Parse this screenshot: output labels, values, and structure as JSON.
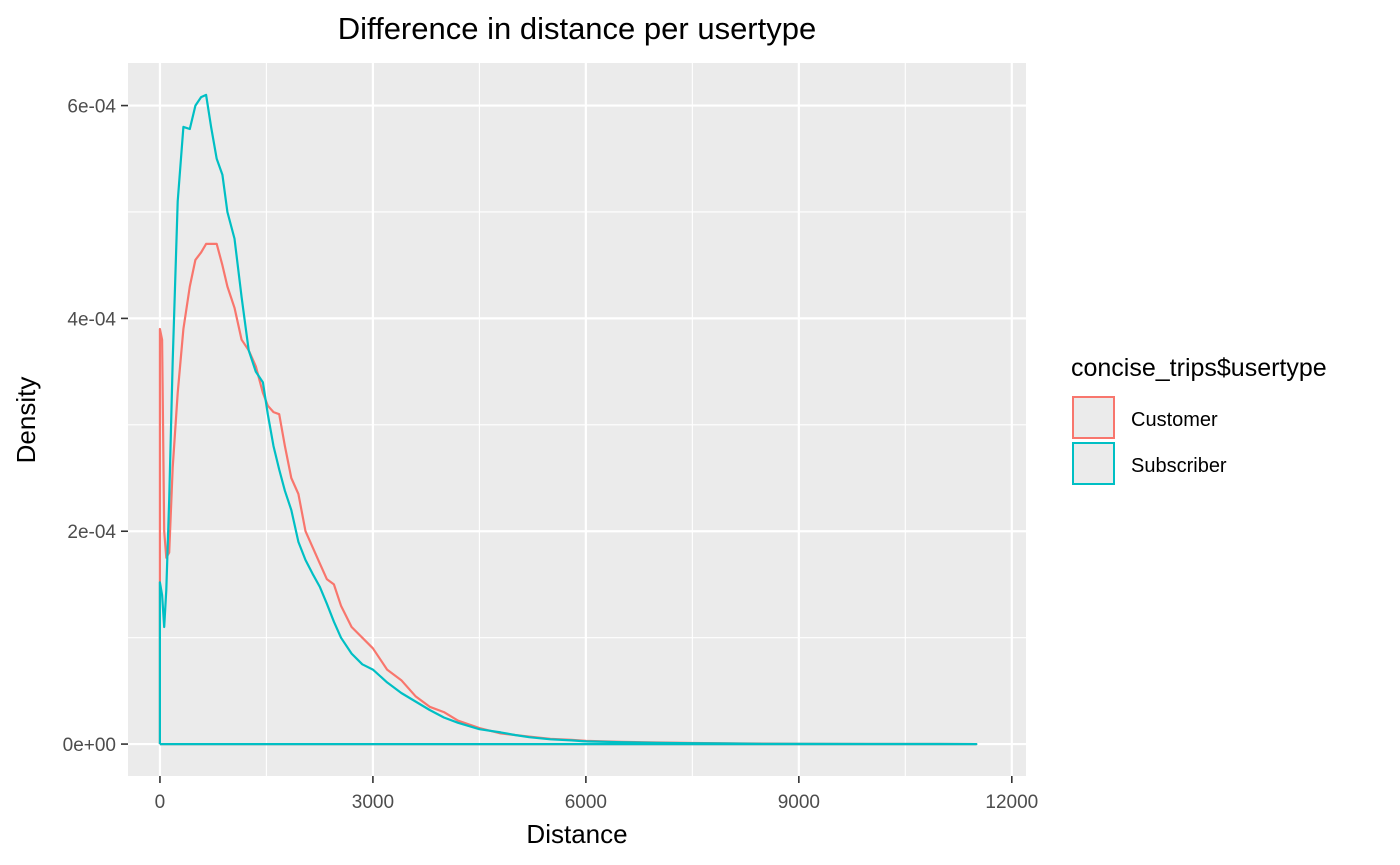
{
  "chart_data": {
    "type": "line",
    "title": "Difference in distance per usertype",
    "xlabel": "Distance",
    "ylabel": "Density",
    "xlim": [
      -450,
      12200
    ],
    "ylim": [
      -3e-05,
      0.00064
    ],
    "x_ticks": [
      0,
      3000,
      6000,
      9000,
      12000
    ],
    "x_tick_labels": [
      "0",
      "3000",
      "6000",
      "9000",
      "12000"
    ],
    "y_ticks": [
      0,
      0.0002,
      0.0004,
      0.0006
    ],
    "y_tick_labels": [
      "0e+00",
      "2e-04",
      "4e-04",
      "6e-04"
    ],
    "grid": true,
    "legend": {
      "title": "concise_trips$usertype",
      "placement": "right"
    },
    "series": [
      {
        "name": "Customer",
        "color": "#F8766D",
        "x": [
          0,
          0,
          30,
          60,
          90,
          130,
          180,
          250,
          330,
          420,
          500,
          580,
          650,
          720,
          800,
          880,
          950,
          1050,
          1150,
          1250,
          1350,
          1450,
          1520,
          1600,
          1680,
          1760,
          1850,
          1950,
          2050,
          2150,
          2250,
          2350,
          2450,
          2550,
          2700,
          2850,
          3000,
          3200,
          3400,
          3600,
          3800,
          4000,
          4200,
          4500,
          4800,
          5000,
          5200,
          5500,
          5800,
          6000,
          6500,
          7000,
          7500,
          8000,
          8500,
          9000,
          10000,
          11000,
          11500,
          11500,
          0
        ],
        "y": [
          0,
          0.00039,
          0.00038,
          0.0002,
          0.000175,
          0.00018,
          0.00026,
          0.00033,
          0.00039,
          0.00043,
          0.000455,
          0.000462,
          0.00047,
          0.00047,
          0.00047,
          0.00045,
          0.00043,
          0.00041,
          0.00038,
          0.00037,
          0.000355,
          0.00033,
          0.000318,
          0.000312,
          0.00031,
          0.00028,
          0.00025,
          0.000235,
          0.0002,
          0.000185,
          0.00017,
          0.000155,
          0.00015,
          0.00013,
          0.00011,
          0.0001,
          9e-05,
          7e-05,
          6e-05,
          4.5e-05,
          3.5e-05,
          3e-05,
          2.2e-05,
          1.5e-05,
          1e-05,
          8.5e-06,
          7e-06,
          5e-06,
          4e-06,
          3e-06,
          2e-06,
          1.5e-06,
          1e-06,
          6e-07,
          4e-07,
          2e-07,
          1e-07,
          5e-08,
          2e-08,
          0,
          0
        ]
      },
      {
        "name": "Subscriber",
        "color": "#00BFC4",
        "x": [
          0,
          0,
          30,
          60,
          90,
          130,
          180,
          250,
          330,
          420,
          500,
          580,
          650,
          720,
          800,
          880,
          950,
          1050,
          1150,
          1250,
          1350,
          1450,
          1520,
          1600,
          1680,
          1760,
          1850,
          1950,
          2050,
          2150,
          2250,
          2350,
          2450,
          2550,
          2700,
          2850,
          3000,
          3200,
          3400,
          3600,
          3800,
          4000,
          4200,
          4500,
          4800,
          5000,
          5200,
          5500,
          5800,
          6000,
          6500,
          7000,
          7500,
          8000,
          8500,
          9000,
          10000,
          11000,
          11500,
          11500,
          0
        ],
        "y": [
          0,
          0.000152,
          0.00014,
          0.00011,
          0.000145,
          0.00023,
          0.00036,
          0.00051,
          0.00058,
          0.000578,
          0.0006,
          0.000608,
          0.00061,
          0.00058,
          0.00055,
          0.000535,
          0.0005,
          0.000475,
          0.00042,
          0.00037,
          0.00035,
          0.00034,
          0.00031,
          0.00028,
          0.000258,
          0.000238,
          0.00022,
          0.00019,
          0.000173,
          0.00016,
          0.000148,
          0.000132,
          0.000115,
          0.0001,
          8.5e-05,
          7.5e-05,
          7e-05,
          5.8e-05,
          4.8e-05,
          4e-05,
          3.2e-05,
          2.5e-05,
          2e-05,
          1.4e-05,
          1.1e-05,
          8.5e-06,
          6.5e-06,
          4.5e-06,
          3.5e-06,
          2.5e-06,
          1.8e-06,
          1.2e-06,
          8e-07,
          5e-07,
          3e-07,
          2e-07,
          1e-07,
          5e-08,
          2e-08,
          0,
          0
        ]
      }
    ]
  }
}
